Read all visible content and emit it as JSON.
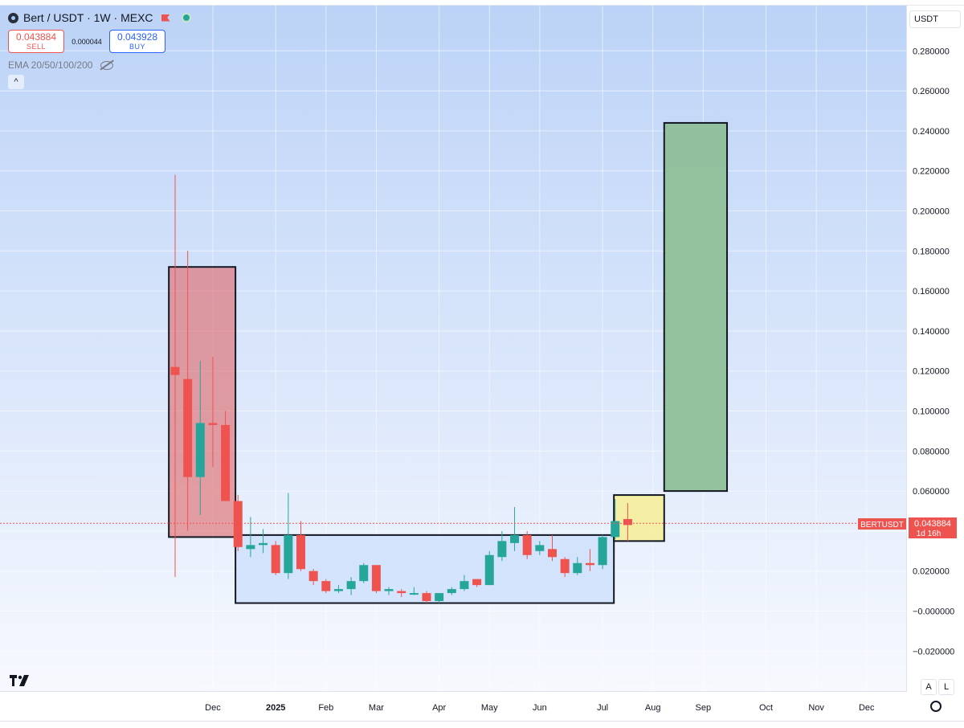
{
  "header": {
    "title": "Bert / USDT · 1W · MEXC",
    "sell_price": "0.043884",
    "sell_label": "SELL",
    "spread": "0.000044",
    "buy_price": "0.043928",
    "buy_label": "BUY",
    "indicator": "EMA 20/50/100/200",
    "collapse": "^"
  },
  "currency": "USDT",
  "price_label": {
    "symbol": "BERTUSDT",
    "price": "0.043884",
    "countdown": "1d 16h"
  },
  "axis_buttons": {
    "auto": "A",
    "log": "L"
  },
  "icons": [
    "symbol-logo-icon",
    "flag-icon",
    "status-dot-icon",
    "eye-off-icon",
    "tradingview-logo-icon",
    "gear-icon"
  ],
  "colors": {
    "up": "#26a69a",
    "down": "#ef5350",
    "red_box": "#e06666",
    "blue_box": "#cfe0fb",
    "yellow_box": "#f5eea0",
    "green_box": "#8fbf99"
  },
  "chart_data": {
    "type": "candlestick",
    "ylim": [
      -0.03,
      0.29
    ],
    "y_ticks": [
      -0.02,
      0.0,
      0.02,
      0.04,
      0.06,
      0.08,
      0.1,
      0.12,
      0.14,
      0.16,
      0.18,
      0.2,
      0.22,
      0.24,
      0.26,
      0.28
    ],
    "y_tick_labels": [
      "−0.020000",
      "−0.000000",
      "0.020000",
      "0.040000",
      "0.060000",
      "0.080000",
      "0.100000",
      "0.120000",
      "0.140000",
      "0.160000",
      "0.180000",
      "0.200000",
      "0.220000",
      "0.240000",
      "0.260000",
      "0.280000"
    ],
    "x_ticks": [
      {
        "label": "Dec",
        "week": 3
      },
      {
        "label": "2025",
        "week": 8
      },
      {
        "label": "Feb",
        "week": 12
      },
      {
        "label": "Mar",
        "week": 16
      },
      {
        "label": "Apr",
        "week": 21
      },
      {
        "label": "May",
        "week": 25
      },
      {
        "label": "Jun",
        "week": 29
      },
      {
        "label": "Jul",
        "week": 34
      },
      {
        "label": "Aug",
        "week": 38
      },
      {
        "label": "Sep",
        "week": 42
      },
      {
        "label": "Oct",
        "week": 47
      },
      {
        "label": "Nov",
        "week": 51
      },
      {
        "label": "Dec",
        "week": 55
      }
    ],
    "candles": [
      {
        "o": 0.122,
        "h": 0.218,
        "l": 0.017,
        "c": 0.118
      },
      {
        "o": 0.116,
        "h": 0.18,
        "l": 0.04,
        "c": 0.067
      },
      {
        "o": 0.067,
        "h": 0.125,
        "l": 0.048,
        "c": 0.094
      },
      {
        "o": 0.094,
        "h": 0.127,
        "l": 0.072,
        "c": 0.093
      },
      {
        "o": 0.093,
        "h": 0.1,
        "l": 0.055,
        "c": 0.055
      },
      {
        "o": 0.055,
        "h": 0.058,
        "l": 0.03,
        "c": 0.032
      },
      {
        "o": 0.031,
        "h": 0.047,
        "l": 0.027,
        "c": 0.033
      },
      {
        "o": 0.033,
        "h": 0.041,
        "l": 0.029,
        "c": 0.034
      },
      {
        "o": 0.033,
        "h": 0.035,
        "l": 0.018,
        "c": 0.019
      },
      {
        "o": 0.019,
        "h": 0.059,
        "l": 0.016,
        "c": 0.038
      },
      {
        "o": 0.038,
        "h": 0.045,
        "l": 0.02,
        "c": 0.021
      },
      {
        "o": 0.02,
        "h": 0.021,
        "l": 0.013,
        "c": 0.015
      },
      {
        "o": 0.015,
        "h": 0.016,
        "l": 0.009,
        "c": 0.01
      },
      {
        "o": 0.01,
        "h": 0.013,
        "l": 0.009,
        "c": 0.011
      },
      {
        "o": 0.011,
        "h": 0.017,
        "l": 0.008,
        "c": 0.015
      },
      {
        "o": 0.015,
        "h": 0.024,
        "l": 0.014,
        "c": 0.023
      },
      {
        "o": 0.023,
        "h": 0.023,
        "l": 0.009,
        "c": 0.01
      },
      {
        "o": 0.01,
        "h": 0.012,
        "l": 0.008,
        "c": 0.011
      },
      {
        "o": 0.01,
        "h": 0.011,
        "l": 0.007,
        "c": 0.009
      },
      {
        "o": 0.009,
        "h": 0.012,
        "l": 0.008,
        "c": 0.009
      },
      {
        "o": 0.009,
        "h": 0.01,
        "l": 0.004,
        "c": 0.005
      },
      {
        "o": 0.005,
        "h": 0.009,
        "l": 0.004,
        "c": 0.009
      },
      {
        "o": 0.009,
        "h": 0.012,
        "l": 0.008,
        "c": 0.011
      },
      {
        "o": 0.011,
        "h": 0.018,
        "l": 0.01,
        "c": 0.015
      },
      {
        "o": 0.016,
        "h": 0.016,
        "l": 0.012,
        "c": 0.013
      },
      {
        "o": 0.013,
        "h": 0.03,
        "l": 0.013,
        "c": 0.028
      },
      {
        "o": 0.027,
        "h": 0.04,
        "l": 0.025,
        "c": 0.035
      },
      {
        "o": 0.034,
        "h": 0.052,
        "l": 0.03,
        "c": 0.038
      },
      {
        "o": 0.038,
        "h": 0.04,
        "l": 0.026,
        "c": 0.028
      },
      {
        "o": 0.03,
        "h": 0.035,
        "l": 0.028,
        "c": 0.033
      },
      {
        "o": 0.031,
        "h": 0.038,
        "l": 0.025,
        "c": 0.027
      },
      {
        "o": 0.026,
        "h": 0.027,
        "l": 0.017,
        "c": 0.019
      },
      {
        "o": 0.019,
        "h": 0.027,
        "l": 0.018,
        "c": 0.024
      },
      {
        "o": 0.024,
        "h": 0.031,
        "l": 0.02,
        "c": 0.023
      },
      {
        "o": 0.023,
        "h": 0.038,
        "l": 0.021,
        "c": 0.037
      },
      {
        "o": 0.037,
        "h": 0.056,
        "l": 0.036,
        "c": 0.045
      },
      {
        "o": 0.046,
        "h": 0.054,
        "l": 0.035,
        "c": 0.043
      }
    ],
    "zones": [
      {
        "color": "red",
        "week_from": -0.5,
        "week_to": 4.8,
        "y_low": 0.037,
        "y_high": 0.172
      },
      {
        "color": "blue",
        "week_from": 4.8,
        "week_to": 34.9,
        "y_low": 0.004,
        "y_high": 0.038
      },
      {
        "color": "yellow",
        "week_from": 34.9,
        "week_to": 38.9,
        "y_low": 0.035,
        "y_high": 0.058
      },
      {
        "color": "green",
        "week_from": 38.9,
        "week_to": 43.9,
        "y_low": 0.06,
        "y_high": 0.244
      }
    ],
    "last_price": 0.043884
  }
}
